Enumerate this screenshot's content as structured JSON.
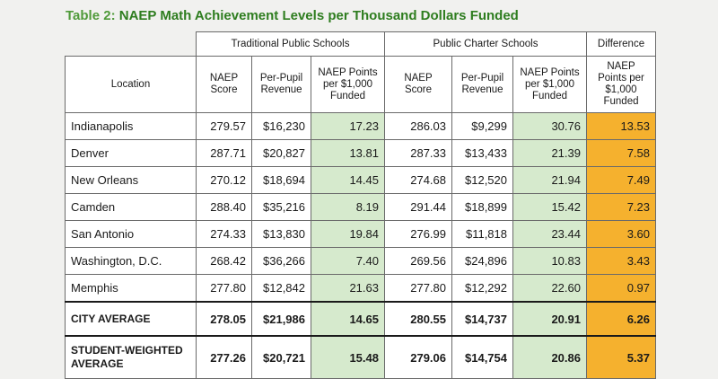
{
  "caption": {
    "label": "Table 2:",
    "title": "NAEP Math Achievement Levels per Thousand Dollars Funded"
  },
  "group_headers": {
    "traditional": "Traditional Public Schools",
    "charter": "Public Charter Schools",
    "difference": "Difference"
  },
  "column_headers": {
    "location": "Location",
    "naep_score_trad": "NAEP Score",
    "revenue_trad": "Per-Pupil Revenue",
    "points_trad": "NAEP Points per $1,000 Funded",
    "naep_score_charter": "NAEP Score",
    "revenue_charter": "Per-Pupil Revenue",
    "points_charter": "NAEP Points per $1,000 Funded",
    "points_diff": "NAEP Points per $1,000 Funded"
  },
  "rows": [
    {
      "location": "Indianapolis",
      "t_score": "279.57",
      "t_rev": "$16,230",
      "t_pts": "17.23",
      "c_score": "286.03",
      "c_rev": "$9,299",
      "c_pts": "30.76",
      "diff": "13.53"
    },
    {
      "location": "Denver",
      "t_score": "287.71",
      "t_rev": "$20,827",
      "t_pts": "13.81",
      "c_score": "287.33",
      "c_rev": "$13,433",
      "c_pts": "21.39",
      "diff": "7.58"
    },
    {
      "location": "New Orleans",
      "t_score": "270.12",
      "t_rev": "$18,694",
      "t_pts": "14.45",
      "c_score": "274.68",
      "c_rev": "$12,520",
      "c_pts": "21.94",
      "diff": "7.49"
    },
    {
      "location": "Camden",
      "t_score": "288.40",
      "t_rev": "$35,216",
      "t_pts": "8.19",
      "c_score": "291.44",
      "c_rev": "$18,899",
      "c_pts": "15.42",
      "diff": "7.23"
    },
    {
      "location": "San Antonio",
      "t_score": "274.33",
      "t_rev": "$13,830",
      "t_pts": "19.84",
      "c_score": "276.99",
      "c_rev": "$11,818",
      "c_pts": "23.44",
      "diff": "3.60"
    },
    {
      "location": "Washington, D.C.",
      "t_score": "268.42",
      "t_rev": "$36,266",
      "t_pts": "7.40",
      "c_score": "269.56",
      "c_rev": "$24,896",
      "c_pts": "10.83",
      "diff": "3.43"
    },
    {
      "location": "Memphis",
      "t_score": "277.80",
      "t_rev": "$12,842",
      "t_pts": "21.63",
      "c_score": "277.80",
      "c_rev": "$12,292",
      "c_pts": "22.60",
      "diff": "0.97"
    }
  ],
  "city_average": {
    "location": "CITY AVERAGE",
    "t_score": "278.05",
    "t_rev": "$21,986",
    "t_pts": "14.65",
    "c_score": "280.55",
    "c_rev": "$14,737",
    "c_pts": "20.91",
    "diff": "6.26"
  },
  "student_weighted": {
    "location": "STUDENT-WEIGHTED AVERAGE",
    "t_score": "277.26",
    "t_rev": "$20,721",
    "t_pts": "15.48",
    "c_score": "279.06",
    "c_rev": "$14,754",
    "c_pts": "20.86",
    "diff": "5.37"
  },
  "colors": {
    "title_green": "#2e7d1f",
    "points_cell_green": "#d6eacd",
    "difference_cell_orange": "#f5b12e",
    "page_background": "#f1f1ef"
  }
}
